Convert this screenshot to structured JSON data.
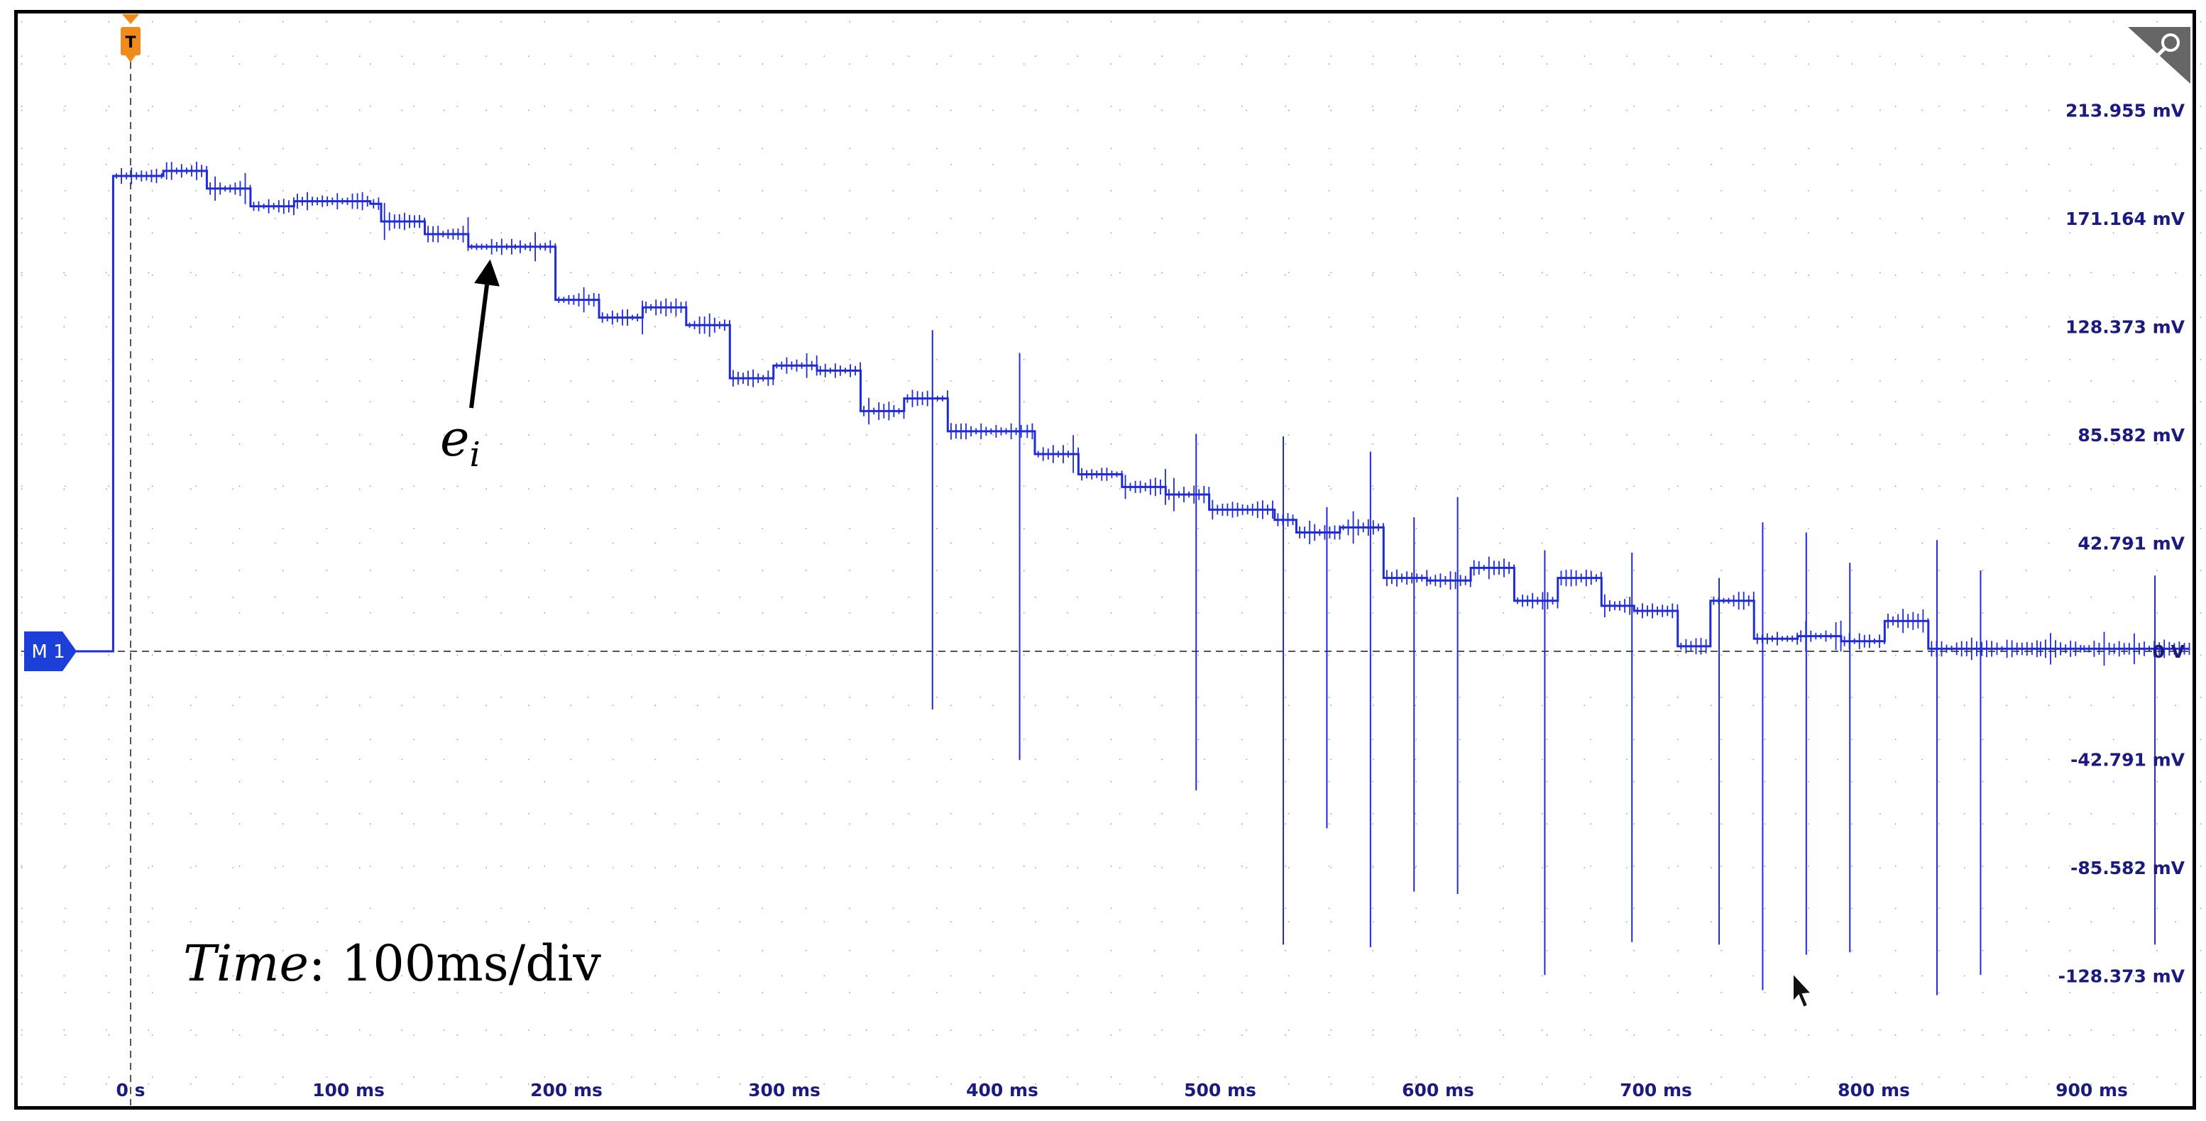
{
  "colors": {
    "trace": "#1f2bd6",
    "axis_label": "#1a1a80",
    "grid": "#9a9a9a",
    "trigger": "#f08a1a",
    "marker_bg": "#1b3fd8"
  },
  "icons": {
    "trigger": "trigger-icon",
    "channel": "channel-marker-icon",
    "corner": "magnifier-corner-icon",
    "cursor": "mouse-pointer-icon"
  },
  "chart_data": {
    "type": "line",
    "title": "",
    "xlabel": "",
    "ylabel": "",
    "grid": true,
    "xlim": [
      -52,
      950
    ],
    "ylim": [
      -171.164,
      244
    ],
    "x_ticks": [
      {
        "value": 0,
        "label": "0 s"
      },
      {
        "value": 100,
        "label": "100 ms"
      },
      {
        "value": 200,
        "label": "200 ms"
      },
      {
        "value": 300,
        "label": "300 ms"
      },
      {
        "value": 400,
        "label": "400 ms"
      },
      {
        "value": 500,
        "label": "500 ms"
      },
      {
        "value": 600,
        "label": "600 ms"
      },
      {
        "value": 700,
        "label": "700 ms"
      },
      {
        "value": 800,
        "label": "800 ms"
      },
      {
        "value": 900,
        "label": "900 ms"
      }
    ],
    "y_ticks": [
      {
        "value": 213.955,
        "label": "213.955 mV"
      },
      {
        "value": 171.164,
        "label": "171.164 mV"
      },
      {
        "value": 128.373,
        "label": "128.373 mV"
      },
      {
        "value": 85.582,
        "label": "85.582 mV"
      },
      {
        "value": 42.791,
        "label": "42.791 mV"
      },
      {
        "value": 0,
        "label": "0 V"
      },
      {
        "value": -42.791,
        "label": "-42.791 mV"
      },
      {
        "value": -85.582,
        "label": "-85.582 mV"
      },
      {
        "value": -128.373,
        "label": "-128.373 mV"
      }
    ],
    "series": [
      {
        "name": "M 1",
        "steps": [
          [
            -48,
            0
          ],
          [
            -8,
            188
          ],
          [
            15,
            190
          ],
          [
            35,
            183
          ],
          [
            55,
            176
          ],
          [
            75,
            178
          ],
          [
            110,
            177
          ],
          [
            115,
            170
          ],
          [
            135,
            165
          ],
          [
            155,
            160
          ],
          [
            175,
            160
          ],
          [
            195,
            139
          ],
          [
            215,
            132
          ],
          [
            235,
            136
          ],
          [
            255,
            129
          ],
          [
            275,
            108
          ],
          [
            295,
            113
          ],
          [
            315,
            111
          ],
          [
            335,
            95
          ],
          [
            355,
            100
          ],
          [
            375,
            87
          ],
          [
            410,
            87
          ],
          [
            415,
            78
          ],
          [
            435,
            70
          ],
          [
            455,
            65
          ],
          [
            475,
            62
          ],
          [
            495,
            56
          ],
          [
            525,
            52
          ],
          [
            535,
            47
          ],
          [
            555,
            49
          ],
          [
            575,
            29
          ],
          [
            595,
            28
          ],
          [
            615,
            33
          ],
          [
            635,
            20
          ],
          [
            655,
            29
          ],
          [
            675,
            18
          ],
          [
            690,
            16
          ],
          [
            710,
            2
          ],
          [
            725,
            20
          ],
          [
            745,
            5
          ],
          [
            765,
            6
          ],
          [
            785,
            4
          ],
          [
            805,
            12
          ],
          [
            825,
            1
          ],
          [
            855,
            1
          ],
          [
            875,
            1
          ],
          [
            895,
            1
          ],
          [
            945,
            1
          ]
        ],
        "spikes": [
          [
            368,
            127,
            -23
          ],
          [
            408,
            118,
            -43
          ],
          [
            489,
            86,
            -55
          ],
          [
            529,
            85,
            -116
          ],
          [
            549,
            57,
            -70
          ],
          [
            569,
            79,
            -117
          ],
          [
            589,
            53,
            -95
          ],
          [
            609,
            61,
            -96
          ],
          [
            649,
            40,
            -128
          ],
          [
            689,
            39,
            -115
          ],
          [
            729,
            29,
            -116
          ],
          [
            749,
            51,
            -134
          ],
          [
            769,
            47,
            -120
          ],
          [
            789,
            35,
            -119
          ],
          [
            829,
            44,
            -136
          ],
          [
            849,
            32,
            -128
          ],
          [
            929,
            30,
            -116
          ]
        ]
      }
    ],
    "annotations": [
      {
        "text": "e",
        "subscript": "i",
        "points_to": [
          165,
          155
        ]
      },
      {
        "text": "Time",
        "suffix": ": 100ms/div"
      }
    ],
    "trigger": {
      "label": "T",
      "time": 0
    },
    "channel_marker": {
      "label": "M 1",
      "level": 0
    }
  }
}
